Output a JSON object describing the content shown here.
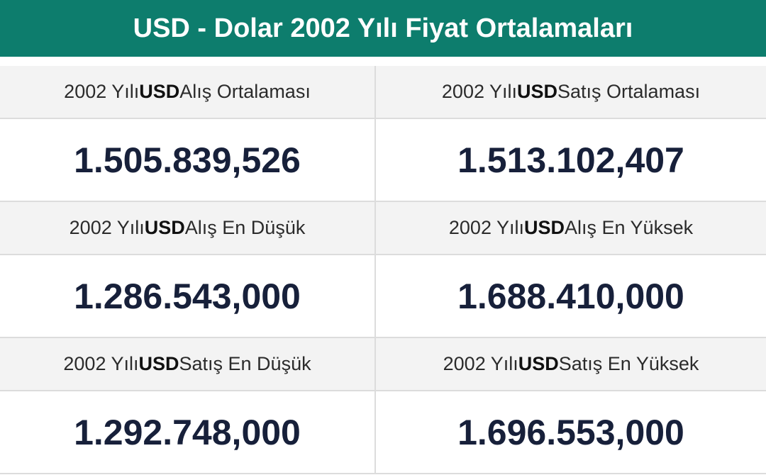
{
  "header": {
    "title": "USD - Dolar 2002 Yılı Fiyat Ortalamaları"
  },
  "cells": [
    {
      "label": {
        "pre": "2002 Yılı",
        "bold": "USD",
        "post": "Alış Ortalaması"
      },
      "value": "1.505.839,526"
    },
    {
      "label": {
        "pre": "2002 Yılı",
        "bold": "USD",
        "post": "Satış Ortalaması"
      },
      "value": "1.513.102,407"
    },
    {
      "label": {
        "pre": "2002 Yılı",
        "bold": "USD",
        "post": "Alış En Düşük"
      },
      "value": "1.286.543,000"
    },
    {
      "label": {
        "pre": "2002 Yılı",
        "bold": "USD",
        "post": "Alış En Yüksek"
      },
      "value": "1.688.410,000"
    },
    {
      "label": {
        "pre": "2002 Yılı",
        "bold": "USD",
        "post": "Satış En Düşük"
      },
      "value": "1.292.748,000"
    },
    {
      "label": {
        "pre": "2002 Yılı",
        "bold": "USD",
        "post": "Satış En Yüksek"
      },
      "value": "1.696.553,000"
    }
  ]
}
